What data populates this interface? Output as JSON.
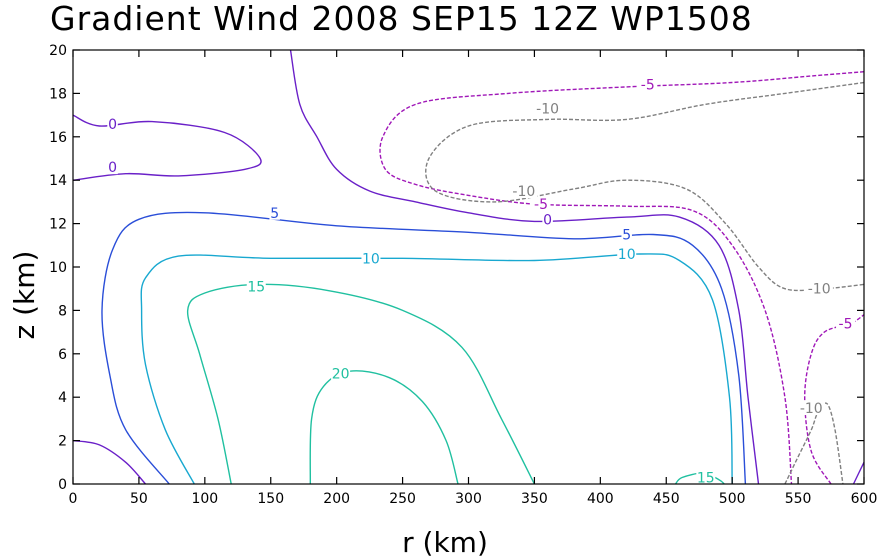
{
  "chart_data": {
    "type": "contour",
    "title": "Gradient Wind 2008 SEP15 12Z  WP1508",
    "xlabel": "r (km)",
    "ylabel": "z (km)",
    "xlim": [
      0,
      600
    ],
    "ylim": [
      0,
      20
    ],
    "xticks": [
      0,
      50,
      100,
      150,
      200,
      250,
      300,
      350,
      400,
      450,
      500,
      550,
      600
    ],
    "yticks": [
      0,
      2,
      4,
      6,
      8,
      10,
      12,
      14,
      16,
      18,
      20
    ],
    "x_tick_labels": [
      "0",
      "50",
      "100",
      "150",
      "200",
      "250",
      "300",
      "350",
      "400",
      "450",
      "500",
      "550",
      "600"
    ],
    "y_tick_labels": [
      "0",
      "2",
      "4",
      "6",
      "8",
      "10",
      "12",
      "14",
      "16",
      "18",
      "20"
    ],
    "colors": {
      "c20": "#20c0a0",
      "c15": "#20c8b0",
      "c10": "#18a8d0",
      "c5": "#2a4ed8",
      "c0": "#6a20c8",
      "cm5": "#a018b8",
      "cm10": "#808080"
    },
    "contours": [
      {
        "level": "20",
        "color": "c20",
        "dashed": false,
        "points": [
          [
            180,
            0
          ],
          [
            181,
            3
          ],
          [
            190,
            4.5
          ],
          [
            210,
            5.2
          ],
          [
            240,
            4.9
          ],
          [
            265,
            3.8
          ],
          [
            283,
            2
          ],
          [
            292,
            0
          ]
        ]
      },
      {
        "level": "15",
        "color": "c20",
        "dashed": false,
        "points": [
          [
            120,
            0
          ],
          [
            110,
            3
          ],
          [
            96,
            6
          ],
          [
            87,
            8
          ],
          [
            100,
            8.8
          ],
          [
            140,
            9.2
          ],
          [
            195,
            8.9
          ],
          [
            250,
            8
          ],
          [
            295,
            6.3
          ],
          [
            325,
            3
          ],
          [
            350,
            0
          ]
        ]
      },
      {
        "level": "15",
        "color": "c20",
        "dashed": false,
        "points": [
          [
            457,
            0
          ],
          [
            462,
            0.3
          ],
          [
            478,
            0.5
          ],
          [
            490,
            0.2
          ],
          [
            494,
            0
          ]
        ]
      },
      {
        "level": "10",
        "color": "c10",
        "dashed": false,
        "points": [
          [
            92,
            0
          ],
          [
            70,
            2.5
          ],
          [
            55,
            5.5
          ],
          [
            52,
            8
          ],
          [
            55,
            9.5
          ],
          [
            80,
            10.5
          ],
          [
            150,
            10.4
          ],
          [
            250,
            10.4
          ],
          [
            350,
            10.3
          ],
          [
            430,
            10.6
          ],
          [
            460,
            10.3
          ],
          [
            485,
            8.5
          ],
          [
            498,
            4
          ],
          [
            500,
            0
          ]
        ]
      },
      {
        "level": "5",
        "color": "c5",
        "dashed": false,
        "points": [
          [
            73,
            0
          ],
          [
            40,
            2.5
          ],
          [
            28,
            5
          ],
          [
            22,
            8
          ],
          [
            30,
            10.8
          ],
          [
            50,
            12.2
          ],
          [
            100,
            12.5
          ],
          [
            200,
            11.9
          ],
          [
            300,
            11.6
          ],
          [
            380,
            11.3
          ],
          [
            440,
            11.5
          ],
          [
            470,
            11
          ],
          [
            492,
            9
          ],
          [
            505,
            5
          ],
          [
            510,
            0
          ]
        ]
      },
      {
        "level": "0",
        "color": "c0",
        "dashed": false,
        "points": [
          [
            0,
            2
          ],
          [
            20,
            1.8
          ],
          [
            40,
            1
          ],
          [
            55,
            0
          ]
        ]
      },
      {
        "level": "0",
        "color": "c0",
        "dashed": false,
        "points": [
          [
            0,
            17
          ],
          [
            20,
            16.5
          ],
          [
            60,
            16.7
          ],
          [
            115,
            16.2
          ],
          [
            142,
            15
          ],
          [
            130,
            14.5
          ],
          [
            80,
            14.2
          ],
          [
            40,
            14.3
          ],
          [
            0,
            14
          ]
        ]
      },
      {
        "level": "0",
        "color": "c0",
        "dashed": false,
        "points": [
          [
            165,
            20
          ],
          [
            172,
            17.5
          ],
          [
            185,
            16
          ],
          [
            200,
            14.5
          ],
          [
            225,
            13.5
          ],
          [
            260,
            13
          ],
          [
            300,
            12.5
          ],
          [
            350,
            12.1
          ],
          [
            420,
            12.3
          ],
          [
            460,
            12.3
          ],
          [
            490,
            11
          ],
          [
            505,
            8
          ],
          [
            512,
            4
          ],
          [
            520,
            0
          ]
        ]
      },
      {
        "level": "0",
        "color": "c0",
        "dashed": false,
        "points": [
          [
            592,
            0
          ],
          [
            600,
            1
          ]
        ]
      },
      {
        "level": "-5",
        "color": "cm5",
        "dashed": true,
        "points": [
          [
            600,
            19
          ],
          [
            560,
            18.8
          ],
          [
            500,
            18.5
          ],
          [
            420,
            18.3
          ],
          [
            330,
            18
          ],
          [
            260,
            17.5
          ],
          [
            235,
            16
          ],
          [
            237,
            14.5
          ],
          [
            260,
            13.8
          ],
          [
            300,
            13.3
          ],
          [
            350,
            12.9
          ],
          [
            420,
            12.8
          ],
          [
            470,
            12.6
          ],
          [
            500,
            11
          ],
          [
            525,
            8
          ],
          [
            540,
            4
          ],
          [
            545,
            0
          ]
        ]
      },
      {
        "level": "-5",
        "color": "cm5",
        "dashed": true,
        "points": [
          [
            575,
            0
          ],
          [
            560,
            1.5
          ],
          [
            555,
            4
          ],
          [
            560,
            6
          ],
          [
            570,
            7
          ],
          [
            590,
            7.4
          ],
          [
            600,
            7.8
          ]
        ]
      },
      {
        "level": "-10",
        "color": "cm10",
        "dashed": true,
        "points": [
          [
            600,
            18.5
          ],
          [
            540,
            18
          ],
          [
            480,
            17.5
          ],
          [
            420,
            16.8
          ],
          [
            360,
            16.8
          ],
          [
            300,
            16.5
          ],
          [
            270,
            15
          ],
          [
            275,
            13.5
          ],
          [
            320,
            13
          ],
          [
            380,
            13.6
          ],
          [
            420,
            14
          ],
          [
            465,
            13.6
          ],
          [
            495,
            12
          ],
          [
            520,
            10
          ],
          [
            540,
            9
          ],
          [
            570,
            9
          ],
          [
            600,
            9.2
          ]
        ]
      },
      {
        "level": "-10",
        "color": "cm10",
        "dashed": true,
        "points": [
          [
            540,
            0
          ],
          [
            548,
            1
          ],
          [
            560,
            2.5
          ],
          [
            565,
            3.3
          ],
          [
            572,
            3.7
          ],
          [
            578,
            2.5
          ],
          [
            584,
            0
          ]
        ]
      }
    ],
    "labels": [
      {
        "text": "0",
        "x": 30,
        "y": 16.6,
        "color": "c0"
      },
      {
        "text": "0",
        "x": 30,
        "y": 14.6,
        "color": "c0"
      },
      {
        "text": "5",
        "x": 153,
        "y": 12.5,
        "color": "c5"
      },
      {
        "text": "10",
        "x": 226,
        "y": 10.4,
        "color": "c10"
      },
      {
        "text": "15",
        "x": 139,
        "y": 9.1,
        "color": "c20"
      },
      {
        "text": "20",
        "x": 203,
        "y": 5.1,
        "color": "c20"
      },
      {
        "text": "0",
        "x": 360,
        "y": 12.2,
        "color": "c0"
      },
      {
        "text": "5",
        "x": 420,
        "y": 11.5,
        "color": "c5"
      },
      {
        "text": "10",
        "x": 420,
        "y": 10.6,
        "color": "c10"
      },
      {
        "text": "15",
        "x": 480,
        "y": 0.3,
        "color": "c20"
      },
      {
        "text": "-5",
        "x": 436,
        "y": 18.4,
        "color": "cm5"
      },
      {
        "text": "-5",
        "x": 355,
        "y": 12.9,
        "color": "cm5"
      },
      {
        "text": "-10",
        "x": 360,
        "y": 17.3,
        "color": "cm10"
      },
      {
        "text": "-10",
        "x": 342,
        "y": 13.5,
        "color": "cm10"
      },
      {
        "text": "-5",
        "x": 586,
        "y": 7.4,
        "color": "cm5"
      },
      {
        "text": "-10",
        "x": 566,
        "y": 9,
        "color": "cm10"
      },
      {
        "text": "-10",
        "x": 560,
        "y": 3.5,
        "color": "cm10"
      }
    ]
  }
}
